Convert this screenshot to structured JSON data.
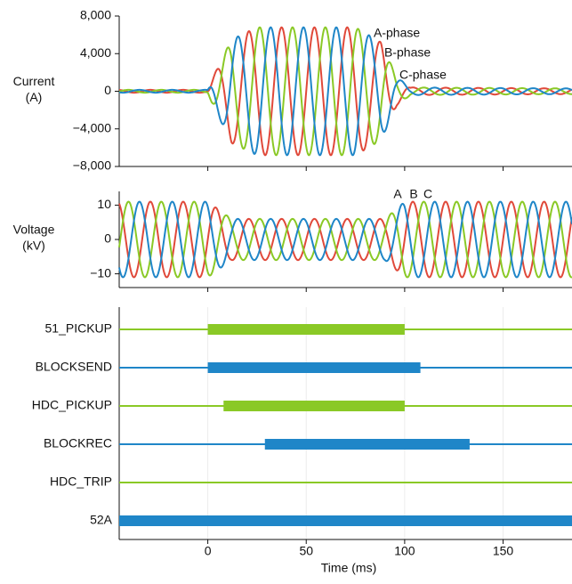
{
  "chart_data": [
    {
      "type": "line",
      "ylabel": [
        "Current",
        "(A)"
      ],
      "ylim": [
        -8000,
        8000
      ],
      "yticks": [
        8000,
        4000,
        0,
        -4000,
        -8000
      ],
      "ytick_labels": [
        "8,000",
        "4,000",
        "0",
        "−4,000",
        "−8,000"
      ],
      "xlim": [
        -45,
        185
      ],
      "xticks": [
        0,
        50,
        100,
        150
      ],
      "frequency_hz": 60,
      "series": [
        {
          "name": "A-phase",
          "color": "#e0493a",
          "phase_deg": 0
        },
        {
          "name": "B-phase",
          "color": "#8ac926",
          "phase_deg": -120
        },
        {
          "name": "C-phase",
          "color": "#1f86c8",
          "phase_deg": 120
        }
      ],
      "amplitude_profile": [
        {
          "t": -45,
          "amp": 150
        },
        {
          "t": 0,
          "amp": 150
        },
        {
          "t": 2,
          "amp": 1200
        },
        {
          "t": 12,
          "amp": 5500
        },
        {
          "t": 25,
          "amp": 6800
        },
        {
          "t": 75,
          "amp": 6800
        },
        {
          "t": 88,
          "amp": 5200
        },
        {
          "t": 96,
          "amp": 1500
        },
        {
          "t": 103,
          "amp": 400
        },
        {
          "t": 185,
          "amp": 300
        }
      ],
      "legend": [
        "A-phase",
        "B-phase",
        "C-phase"
      ]
    },
    {
      "type": "line",
      "ylabel": [
        "Voltage",
        "(kV)"
      ],
      "ylim": [
        -14,
        14
      ],
      "yticks": [
        10,
        0,
        -10
      ],
      "ytick_labels": [
        "10",
        "0",
        "−10"
      ],
      "xlim": [
        -45,
        185
      ],
      "xticks": [
        0,
        50,
        100,
        150
      ],
      "frequency_hz": 60,
      "series": [
        {
          "name": "A",
          "color": "#e0493a",
          "phase_deg": 0
        },
        {
          "name": "B",
          "color": "#8ac926",
          "phase_deg": -120
        },
        {
          "name": "C",
          "color": "#1f86c8",
          "phase_deg": 120
        }
      ],
      "amplitude_profile": [
        {
          "t": -45,
          "amp": 11
        },
        {
          "t": 0,
          "amp": 11
        },
        {
          "t": 12,
          "amp": 6
        },
        {
          "t": 90,
          "amp": 6
        },
        {
          "t": 100,
          "amp": 11
        },
        {
          "t": 185,
          "amp": 11
        }
      ],
      "legend": [
        "A",
        "B",
        "C"
      ]
    },
    {
      "type": "timeline",
      "xlabel": "Time (ms)",
      "xlim": [
        -45,
        185
      ],
      "xticks": [
        0,
        50,
        100,
        150
      ],
      "xtick_labels": [
        "0",
        "50",
        "100",
        "150"
      ],
      "signals": [
        {
          "name": "51_PICKUP",
          "color": "#8ac926",
          "on": [
            [
              0,
              100
            ]
          ]
        },
        {
          "name": "BLOCKSEND",
          "color": "#1f86c8",
          "on": [
            [
              0,
              108
            ]
          ]
        },
        {
          "name": "HDC_PICKUP",
          "color": "#8ac926",
          "on": [
            [
              8,
              100
            ]
          ]
        },
        {
          "name": "BLOCKREC",
          "color": "#1f86c8",
          "on": [
            [
              29,
              133
            ]
          ]
        },
        {
          "name": "HDC_TRIP",
          "color": "#8ac926",
          "on": []
        },
        {
          "name": "52A",
          "color": "#1f86c8",
          "on": [
            [
              -45,
              185
            ]
          ]
        }
      ]
    }
  ]
}
